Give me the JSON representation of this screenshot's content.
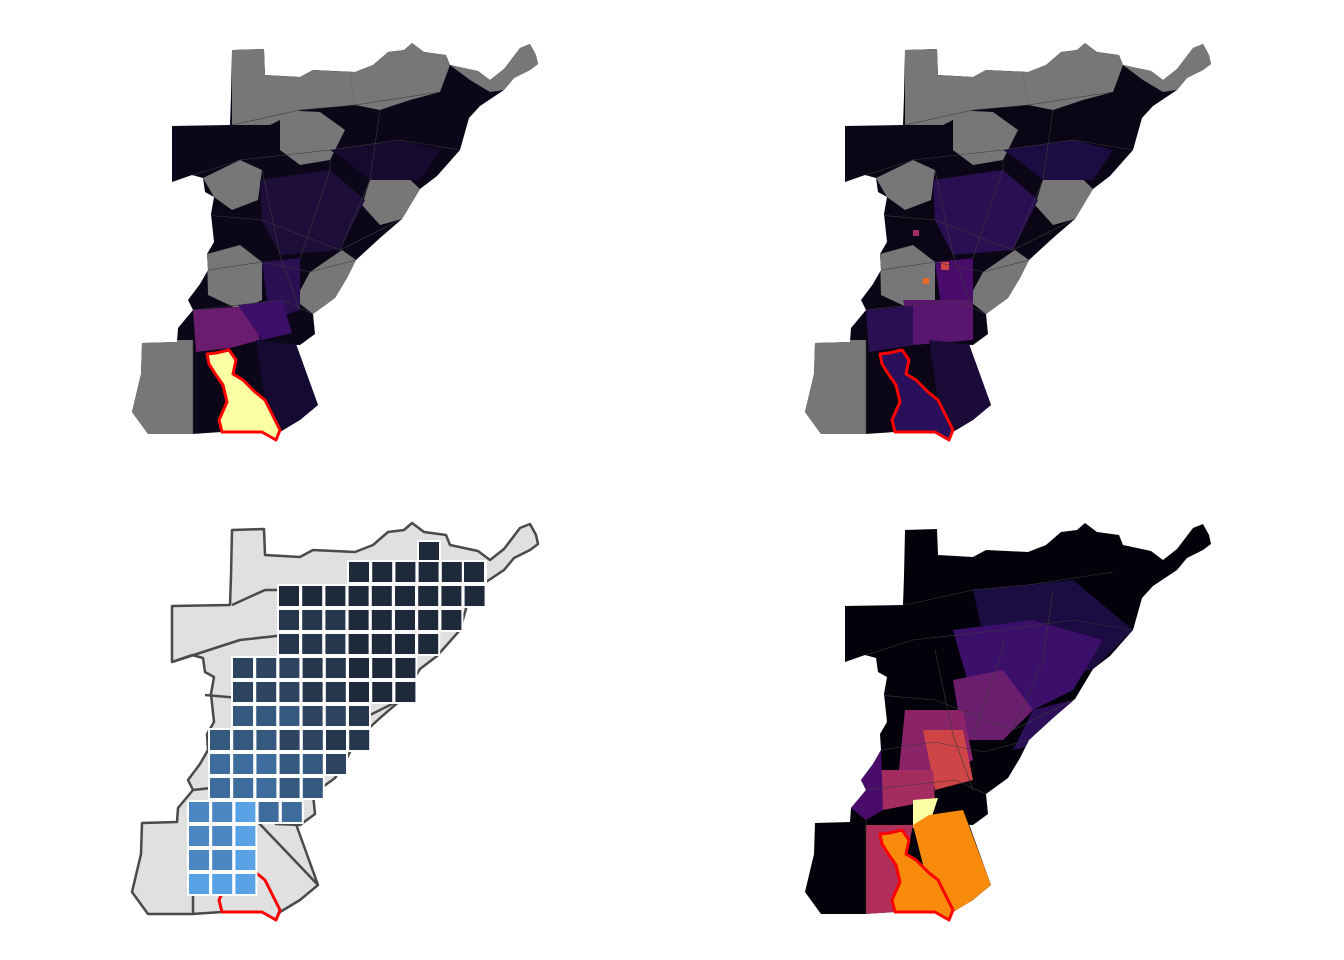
{
  "figure": {
    "panel_count": 4,
    "layout": "2x2 grid"
  },
  "colors": {
    "background": "#ffffff",
    "no_data_fill": "#777777",
    "tract_border_dark": "#3a3a3a",
    "highlight_outline": "#ff0000",
    "region_light_fill": "#e0e0e0",
    "region_light_border": "#4a4a4a",
    "grid_cell_border": "#ffffff",
    "inferno_ramp": [
      "#000004",
      "#1b0c41",
      "#4a0c6b",
      "#781c6d",
      "#a52c60",
      "#cf4446",
      "#ed6925",
      "#fb9b06",
      "#f7d13d",
      "#fcffa4"
    ],
    "blue_ramp": [
      "#1e2a3a",
      "#25364d",
      "#2d4563",
      "#35587e",
      "#3e6c9c",
      "#4a86c2",
      "#5aa2e6"
    ]
  },
  "panels": [
    {
      "id": "top-left",
      "style": "tracts-inferno",
      "no_data_shown": true,
      "highlight_fill": "#fcffa4"
    },
    {
      "id": "top-right",
      "style": "tracts-inferno",
      "no_data_shown": true,
      "highlight_fill": "#2a0f5c"
    },
    {
      "id": "bottom-left",
      "style": "grid-overlay",
      "no_data_shown": false,
      "highlight_fill": "none"
    },
    {
      "id": "bottom-right",
      "style": "tracts-inferno",
      "no_data_shown": false,
      "highlight_fill": "#f98b0c"
    }
  ]
}
